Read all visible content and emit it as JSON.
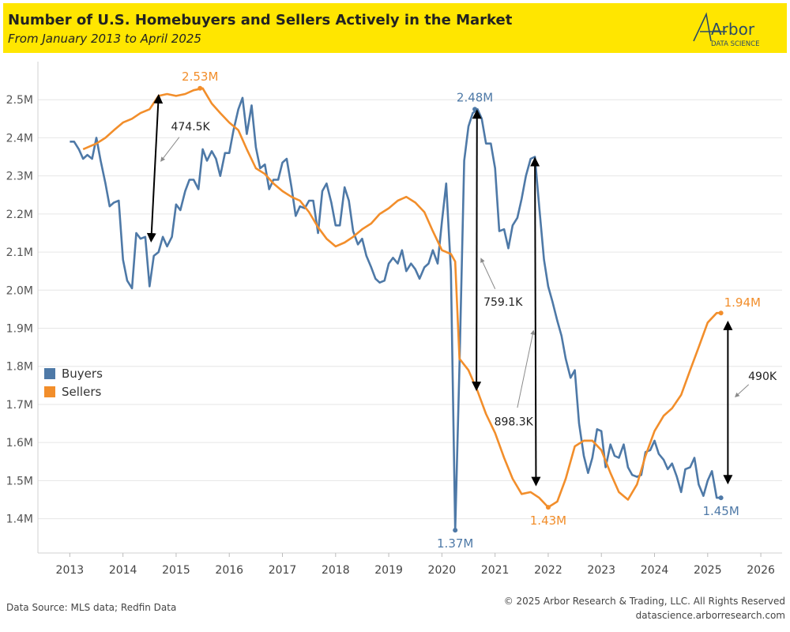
{
  "header": {
    "title": "Number of U.S. Homebuyers and Sellers Actively in the Market",
    "subtitle": "From January 2013 to April 2025",
    "logo_text": "Arbor",
    "logo_subtext": "DATA SCIENCE"
  },
  "footer": {
    "source": "Data Source: MLS data; Redfin Data",
    "copyright": "© 2025 Arbor Research & Trading, LLC. All Rights Reserved",
    "url": "datascience.arborresearch.com"
  },
  "colors": {
    "buyers": "#4e79a7",
    "sellers": "#f28e2b",
    "header_bg": "#ffe600"
  },
  "chart_data": {
    "type": "line",
    "xlim": [
      2012.4,
      2026.4
    ],
    "ylim": [
      1.31,
      2.6
    ],
    "x_ticks": [
      2013,
      2014,
      2015,
      2016,
      2017,
      2018,
      2019,
      2020,
      2021,
      2022,
      2023,
      2024,
      2025,
      2026
    ],
    "x_tick_labels": [
      "2013",
      "2014",
      "2015",
      "2016",
      "2017",
      "2018",
      "2019",
      "2020",
      "2021",
      "2022",
      "2023",
      "2024",
      "2025",
      "2026"
    ],
    "y_ticks": [
      1.4,
      1.5,
      1.6,
      1.7,
      1.8,
      1.9,
      2.0,
      2.1,
      2.2,
      2.3,
      2.4,
      2.5
    ],
    "y_tick_labels": [
      "1.4M",
      "1.5M",
      "1.6M",
      "1.7M",
      "1.8M",
      "1.9M",
      "2.0M",
      "2.1M",
      "2.2M",
      "2.3M",
      "2.4M",
      "2.5M"
    ],
    "legend_position": "left-middle",
    "series": [
      {
        "name": "Buyers",
        "color": "#4e79a7",
        "points": [
          [
            2013.0,
            2.39
          ],
          [
            2013.08,
            2.39
          ],
          [
            2013.17,
            2.37
          ],
          [
            2013.25,
            2.345
          ],
          [
            2013.33,
            2.355
          ],
          [
            2013.42,
            2.345
          ],
          [
            2013.5,
            2.4
          ],
          [
            2013.58,
            2.34
          ],
          [
            2013.67,
            2.28
          ],
          [
            2013.75,
            2.22
          ],
          [
            2013.83,
            2.23
          ],
          [
            2013.92,
            2.235
          ],
          [
            2014.0,
            2.08
          ],
          [
            2014.08,
            2.025
          ],
          [
            2014.17,
            2.005
          ],
          [
            2014.25,
            2.15
          ],
          [
            2014.33,
            2.135
          ],
          [
            2014.42,
            2.14
          ],
          [
            2014.5,
            2.01
          ],
          [
            2014.58,
            2.09
          ],
          [
            2014.67,
            2.1
          ],
          [
            2014.75,
            2.14
          ],
          [
            2014.83,
            2.115
          ],
          [
            2014.92,
            2.14
          ],
          [
            2015.0,
            2.225
          ],
          [
            2015.08,
            2.21
          ],
          [
            2015.17,
            2.26
          ],
          [
            2015.25,
            2.29
          ],
          [
            2015.33,
            2.29
          ],
          [
            2015.42,
            2.265
          ],
          [
            2015.5,
            2.37
          ],
          [
            2015.58,
            2.34
          ],
          [
            2015.67,
            2.365
          ],
          [
            2015.75,
            2.345
          ],
          [
            2015.83,
            2.3
          ],
          [
            2015.92,
            2.36
          ],
          [
            2016.0,
            2.36
          ],
          [
            2016.08,
            2.42
          ],
          [
            2016.17,
            2.475
          ],
          [
            2016.25,
            2.505
          ],
          [
            2016.33,
            2.41
          ],
          [
            2016.42,
            2.485
          ],
          [
            2016.5,
            2.375
          ],
          [
            2016.58,
            2.32
          ],
          [
            2016.67,
            2.33
          ],
          [
            2016.75,
            2.265
          ],
          [
            2016.83,
            2.29
          ],
          [
            2016.92,
            2.29
          ],
          [
            2017.0,
            2.335
          ],
          [
            2017.08,
            2.345
          ],
          [
            2017.17,
            2.27
          ],
          [
            2017.25,
            2.195
          ],
          [
            2017.33,
            2.22
          ],
          [
            2017.42,
            2.215
          ],
          [
            2017.5,
            2.235
          ],
          [
            2017.58,
            2.235
          ],
          [
            2017.67,
            2.15
          ],
          [
            2017.75,
            2.26
          ],
          [
            2017.83,
            2.28
          ],
          [
            2017.92,
            2.23
          ],
          [
            2018.0,
            2.17
          ],
          [
            2018.08,
            2.17
          ],
          [
            2018.17,
            2.27
          ],
          [
            2018.25,
            2.235
          ],
          [
            2018.33,
            2.155
          ],
          [
            2018.42,
            2.12
          ],
          [
            2018.5,
            2.135
          ],
          [
            2018.58,
            2.09
          ],
          [
            2018.67,
            2.06
          ],
          [
            2018.75,
            2.03
          ],
          [
            2018.83,
            2.02
          ],
          [
            2018.92,
            2.025
          ],
          [
            2019.0,
            2.07
          ],
          [
            2019.08,
            2.085
          ],
          [
            2019.17,
            2.07
          ],
          [
            2019.25,
            2.105
          ],
          [
            2019.33,
            2.05
          ],
          [
            2019.42,
            2.07
          ],
          [
            2019.5,
            2.055
          ],
          [
            2019.58,
            2.03
          ],
          [
            2019.67,
            2.06
          ],
          [
            2019.75,
            2.07
          ],
          [
            2019.83,
            2.105
          ],
          [
            2019.92,
            2.07
          ],
          [
            2020.0,
            2.18
          ],
          [
            2020.08,
            2.28
          ],
          [
            2020.17,
            2.05
          ],
          [
            2020.25,
            1.37
          ],
          [
            2020.33,
            1.8
          ],
          [
            2020.42,
            2.34
          ],
          [
            2020.5,
            2.43
          ],
          [
            2020.58,
            2.465
          ],
          [
            2020.67,
            2.475
          ],
          [
            2020.75,
            2.45
          ],
          [
            2020.83,
            2.385
          ],
          [
            2020.92,
            2.385
          ],
          [
            2021.0,
            2.32
          ],
          [
            2021.08,
            2.155
          ],
          [
            2021.17,
            2.16
          ],
          [
            2021.25,
            2.11
          ],
          [
            2021.33,
            2.17
          ],
          [
            2021.42,
            2.19
          ],
          [
            2021.5,
            2.24
          ],
          [
            2021.58,
            2.3
          ],
          [
            2021.67,
            2.345
          ],
          [
            2021.75,
            2.35
          ],
          [
            2021.83,
            2.22
          ],
          [
            2021.92,
            2.08
          ],
          [
            2022.0,
            2.01
          ],
          [
            2022.08,
            1.97
          ],
          [
            2022.17,
            1.92
          ],
          [
            2022.25,
            1.88
          ],
          [
            2022.33,
            1.82
          ],
          [
            2022.42,
            1.77
          ],
          [
            2022.5,
            1.79
          ],
          [
            2022.58,
            1.65
          ],
          [
            2022.67,
            1.565
          ],
          [
            2022.75,
            1.52
          ],
          [
            2022.83,
            1.56
          ],
          [
            2022.92,
            1.635
          ],
          [
            2023.0,
            1.63
          ],
          [
            2023.08,
            1.535
          ],
          [
            2023.17,
            1.595
          ],
          [
            2023.25,
            1.565
          ],
          [
            2023.33,
            1.56
          ],
          [
            2023.42,
            1.595
          ],
          [
            2023.5,
            1.535
          ],
          [
            2023.58,
            1.515
          ],
          [
            2023.67,
            1.51
          ],
          [
            2023.75,
            1.515
          ],
          [
            2023.83,
            1.575
          ],
          [
            2023.92,
            1.58
          ],
          [
            2024.0,
            1.605
          ],
          [
            2024.08,
            1.57
          ],
          [
            2024.17,
            1.555
          ],
          [
            2024.25,
            1.53
          ],
          [
            2024.33,
            1.545
          ],
          [
            2024.42,
            1.51
          ],
          [
            2024.5,
            1.47
          ],
          [
            2024.58,
            1.53
          ],
          [
            2024.67,
            1.535
          ],
          [
            2024.75,
            1.56
          ],
          [
            2024.83,
            1.49
          ],
          [
            2024.92,
            1.46
          ],
          [
            2025.0,
            1.5
          ],
          [
            2025.08,
            1.525
          ],
          [
            2025.17,
            1.455
          ],
          [
            2025.25,
            1.455
          ]
        ]
      },
      {
        "name": "Sellers",
        "color": "#f28e2b",
        "points": [
          [
            2013.25,
            2.37
          ],
          [
            2013.5,
            2.385
          ],
          [
            2013.67,
            2.4
          ],
          [
            2013.83,
            2.42
          ],
          [
            2014.0,
            2.44
          ],
          [
            2014.17,
            2.45
          ],
          [
            2014.33,
            2.465
          ],
          [
            2014.5,
            2.475
          ],
          [
            2014.67,
            2.51
          ],
          [
            2014.83,
            2.515
          ],
          [
            2015.0,
            2.51
          ],
          [
            2015.17,
            2.515
          ],
          [
            2015.33,
            2.525
          ],
          [
            2015.5,
            2.53
          ],
          [
            2015.67,
            2.49
          ],
          [
            2015.83,
            2.465
          ],
          [
            2016.0,
            2.44
          ],
          [
            2016.17,
            2.42
          ],
          [
            2016.33,
            2.37
          ],
          [
            2016.5,
            2.32
          ],
          [
            2016.67,
            2.305
          ],
          [
            2016.83,
            2.28
          ],
          [
            2017.0,
            2.26
          ],
          [
            2017.17,
            2.245
          ],
          [
            2017.33,
            2.235
          ],
          [
            2017.5,
            2.205
          ],
          [
            2017.67,
            2.165
          ],
          [
            2017.83,
            2.135
          ],
          [
            2018.0,
            2.115
          ],
          [
            2018.17,
            2.125
          ],
          [
            2018.33,
            2.14
          ],
          [
            2018.5,
            2.16
          ],
          [
            2018.67,
            2.175
          ],
          [
            2018.83,
            2.2
          ],
          [
            2019.0,
            2.215
          ],
          [
            2019.17,
            2.235
          ],
          [
            2019.33,
            2.245
          ],
          [
            2019.5,
            2.23
          ],
          [
            2019.67,
            2.205
          ],
          [
            2019.83,
            2.155
          ],
          [
            2020.0,
            2.105
          ],
          [
            2020.17,
            2.095
          ],
          [
            2020.25,
            2.075
          ],
          [
            2020.33,
            1.82
          ],
          [
            2020.5,
            1.79
          ],
          [
            2020.67,
            1.735
          ],
          [
            2020.83,
            1.675
          ],
          [
            2021.0,
            1.625
          ],
          [
            2021.17,
            1.56
          ],
          [
            2021.33,
            1.505
          ],
          [
            2021.5,
            1.465
          ],
          [
            2021.67,
            1.47
          ],
          [
            2021.83,
            1.455
          ],
          [
            2022.0,
            1.43
          ],
          [
            2022.17,
            1.445
          ],
          [
            2022.33,
            1.505
          ],
          [
            2022.5,
            1.59
          ],
          [
            2022.67,
            1.605
          ],
          [
            2022.83,
            1.605
          ],
          [
            2023.0,
            1.58
          ],
          [
            2023.17,
            1.52
          ],
          [
            2023.33,
            1.47
          ],
          [
            2023.5,
            1.45
          ],
          [
            2023.67,
            1.49
          ],
          [
            2023.83,
            1.565
          ],
          [
            2024.0,
            1.63
          ],
          [
            2024.17,
            1.67
          ],
          [
            2024.33,
            1.69
          ],
          [
            2024.5,
            1.725
          ],
          [
            2024.67,
            1.79
          ],
          [
            2024.83,
            1.85
          ],
          [
            2025.0,
            1.915
          ],
          [
            2025.17,
            1.94
          ],
          [
            2025.25,
            1.94
          ]
        ]
      }
    ],
    "point_labels": [
      {
        "text": "2.53M",
        "x": 2015.45,
        "y": 2.53,
        "series": "Sellers",
        "anchor": "above"
      },
      {
        "text": "2.48M",
        "x": 2020.62,
        "y": 2.475,
        "series": "Buyers",
        "anchor": "above"
      },
      {
        "text": "1.37M",
        "x": 2020.25,
        "y": 1.37,
        "series": "Buyers",
        "anchor": "below"
      },
      {
        "text": "1.43M",
        "x": 2022.0,
        "y": 1.43,
        "series": "Sellers",
        "anchor": "below"
      },
      {
        "text": "1.94M",
        "x": 2025.25,
        "y": 1.94,
        "series": "Sellers",
        "anchor": "above-right"
      },
      {
        "text": "1.45M",
        "x": 2025.25,
        "y": 1.455,
        "series": "Buyers",
        "anchor": "below"
      }
    ],
    "gap_annotations": [
      {
        "text": "474.5K",
        "x_top": 2014.67,
        "y_top": 2.51,
        "x_bottom": 2014.53,
        "y_bottom": 2.13,
        "label_x": 2015.27,
        "label_y": 2.43
      },
      {
        "text": "759.1K",
        "x_top": 2020.66,
        "y_top": 2.47,
        "x_bottom": 2020.65,
        "y_bottom": 1.74,
        "label_x": 2021.15,
        "label_y": 1.97
      },
      {
        "text": "898.3K",
        "x_top": 2021.75,
        "y_top": 2.345,
        "x_bottom": 2021.77,
        "y_bottom": 1.49,
        "label_x": 2021.35,
        "label_y": 1.655
      },
      {
        "text": "490K",
        "x_top": 2025.38,
        "y_top": 1.915,
        "x_bottom": 2025.38,
        "y_bottom": 1.495,
        "label_x": 2026.03,
        "label_y": 1.775
      }
    ]
  }
}
